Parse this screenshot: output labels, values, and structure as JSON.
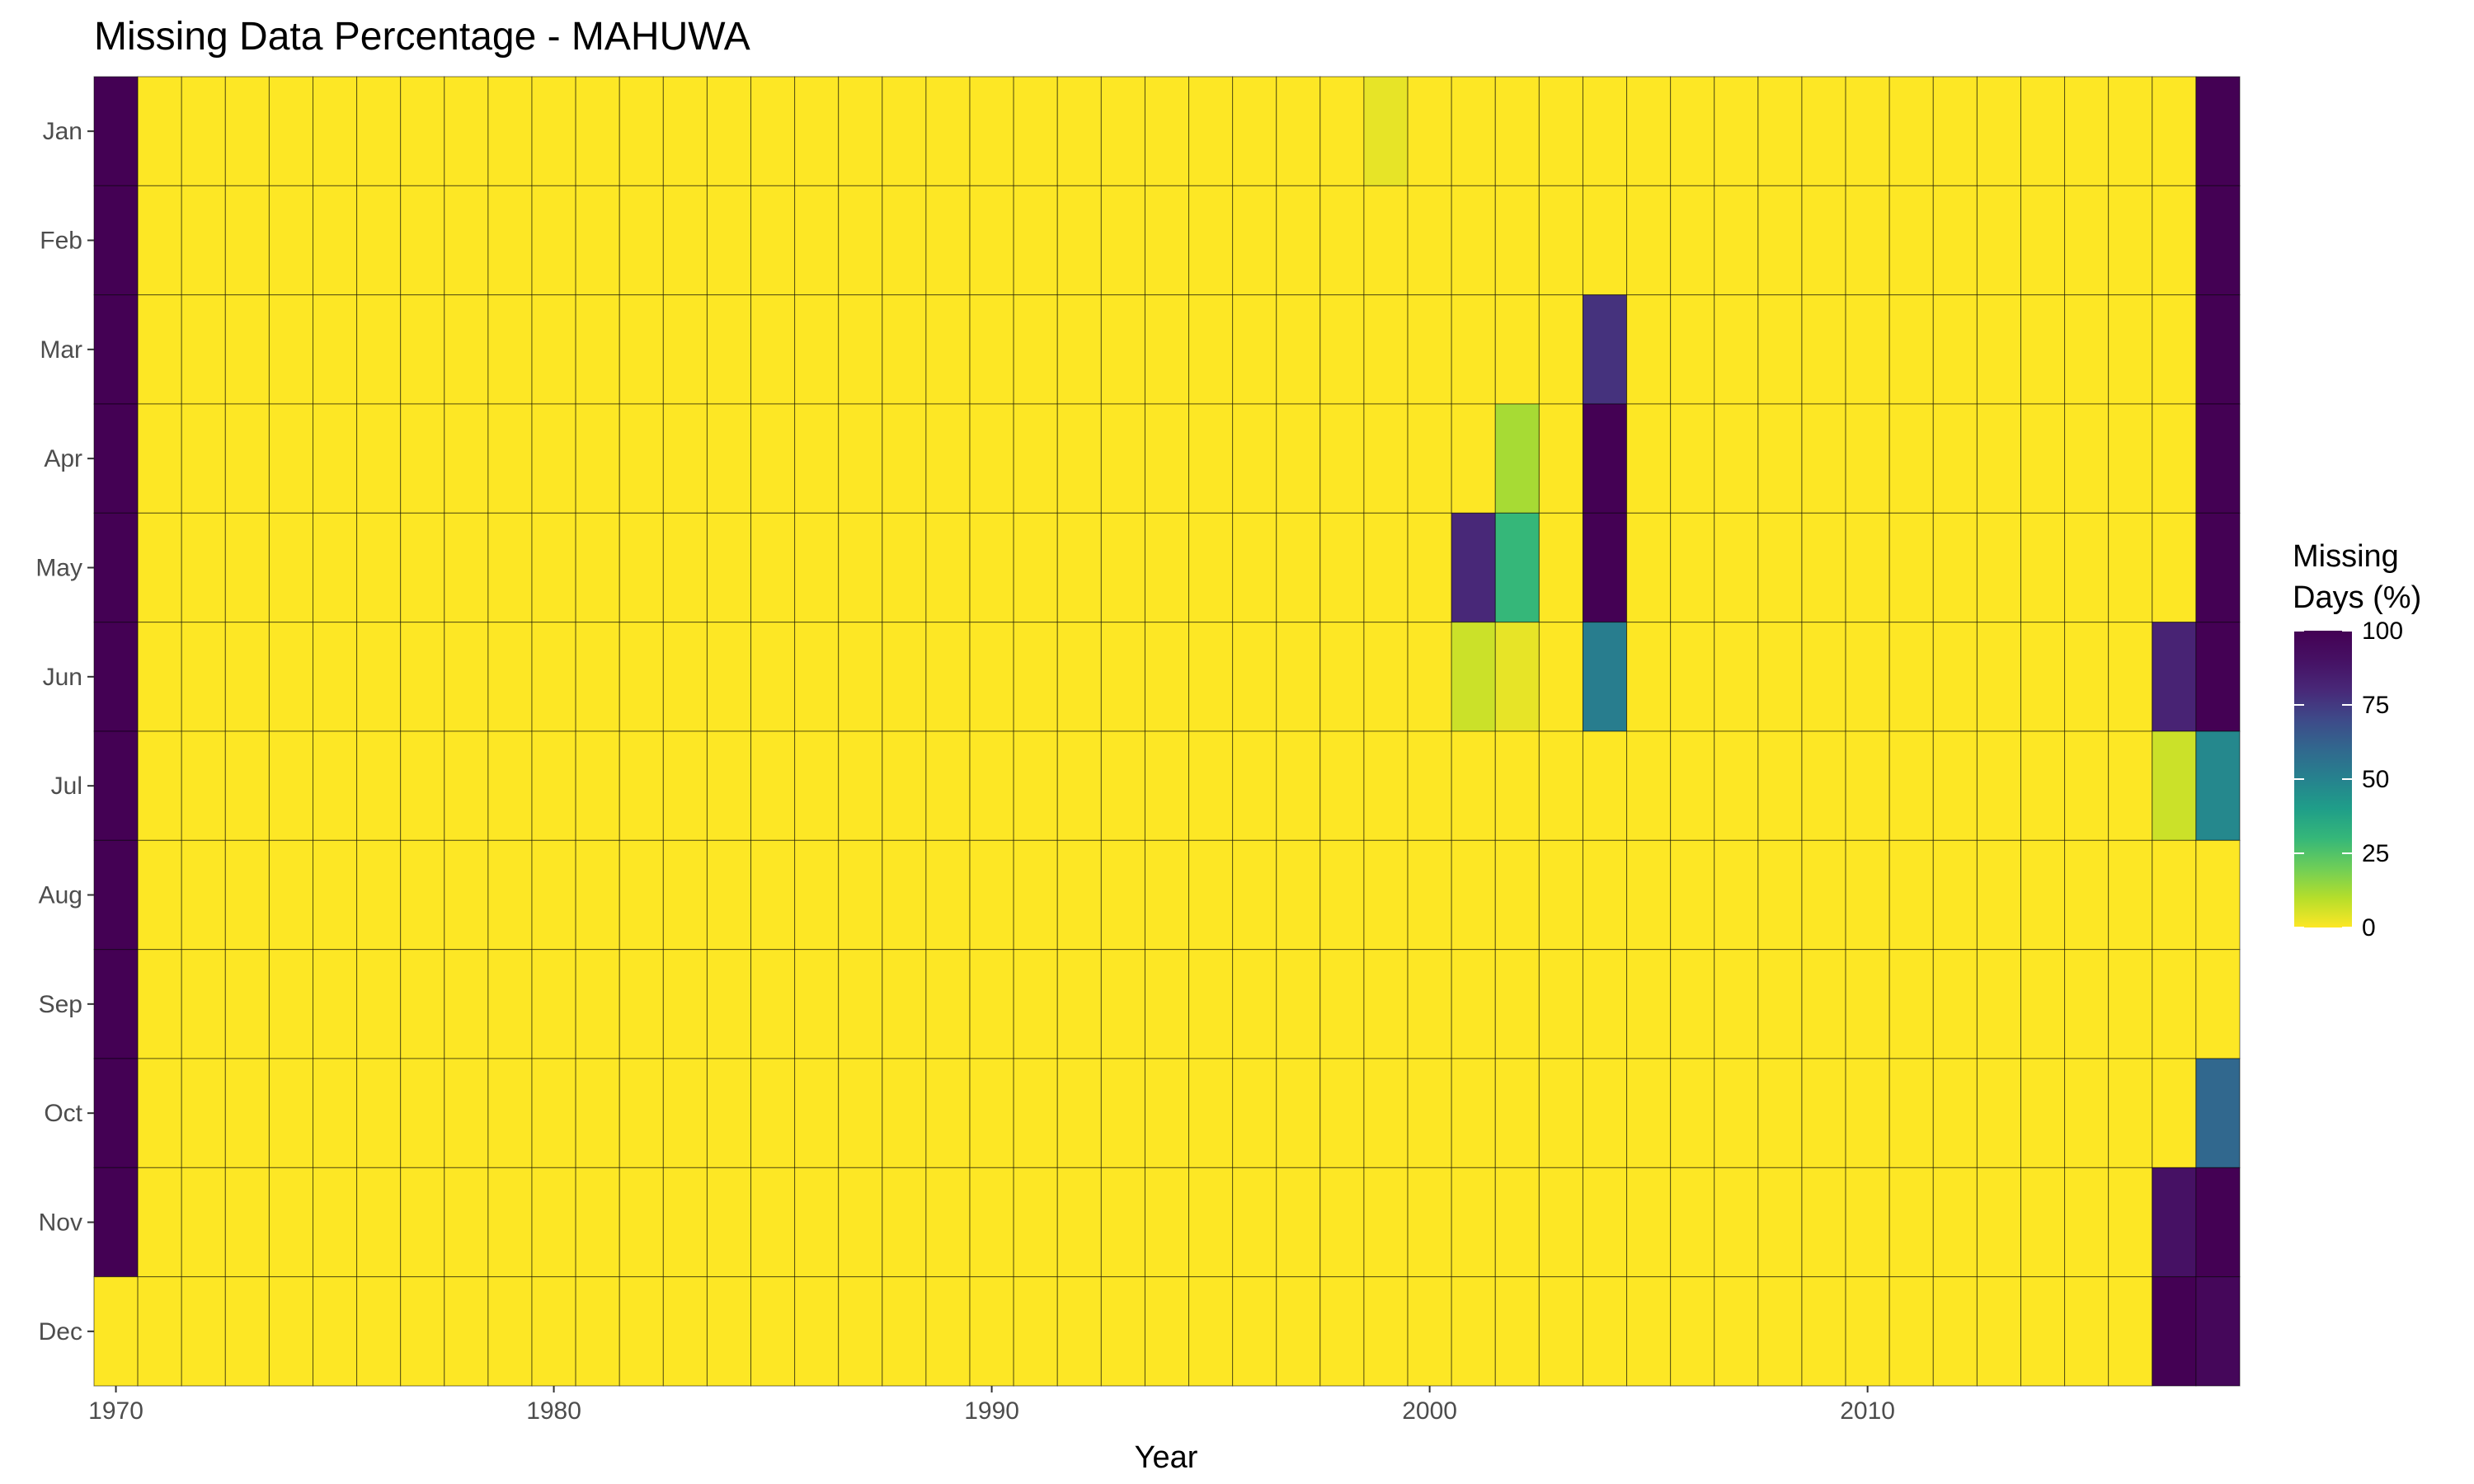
{
  "chart_data": {
    "type": "heatmap",
    "title": "Missing Data Percentage - MAHUWA",
    "xlabel": "Year",
    "ylabel": "",
    "x_start_year": 1970,
    "x_end_year": 2018,
    "x_ticks": [
      "1970",
      "1980",
      "1990",
      "2000",
      "2010"
    ],
    "months": [
      "Jan",
      "Feb",
      "Mar",
      "Apr",
      "May",
      "Jun",
      "Jul",
      "Aug",
      "Sep",
      "Oct",
      "Nov",
      "Dec"
    ],
    "colorbar": {
      "title_lines": [
        "Missing",
        "Days (%)"
      ],
      "ticks": [
        "100",
        "75",
        "50",
        "25",
        "0"
      ],
      "range": [
        0,
        100
      ]
    },
    "legend_position": "right",
    "default_value": 0,
    "cells": [
      {
        "year": 1970,
        "month": "Jan",
        "value": 100
      },
      {
        "year": 1970,
        "month": "Feb",
        "value": 100
      },
      {
        "year": 1970,
        "month": "Mar",
        "value": 100
      },
      {
        "year": 1970,
        "month": "Apr",
        "value": 100
      },
      {
        "year": 1970,
        "month": "May",
        "value": 100
      },
      {
        "year": 1970,
        "month": "Jun",
        "value": 100
      },
      {
        "year": 1970,
        "month": "Jul",
        "value": 100
      },
      {
        "year": 1970,
        "month": "Aug",
        "value": 100
      },
      {
        "year": 1970,
        "month": "Sep",
        "value": 100
      },
      {
        "year": 1970,
        "month": "Oct",
        "value": 100
      },
      {
        "year": 1970,
        "month": "Nov",
        "value": 100
      },
      {
        "year": 1970,
        "month": "Dec",
        "value": 0
      },
      {
        "year": 1999,
        "month": "Jan",
        "value": 3
      },
      {
        "year": 2001,
        "month": "May",
        "value": 80
      },
      {
        "year": 2001,
        "month": "Jun",
        "value": 7
      },
      {
        "year": 2002,
        "month": "Apr",
        "value": 12
      },
      {
        "year": 2002,
        "month": "May",
        "value": 30
      },
      {
        "year": 2002,
        "month": "Jun",
        "value": 3
      },
      {
        "year": 2004,
        "month": "Mar",
        "value": 77
      },
      {
        "year": 2004,
        "month": "Apr",
        "value": 100
      },
      {
        "year": 2004,
        "month": "May",
        "value": 100
      },
      {
        "year": 2004,
        "month": "Jun",
        "value": 52
      },
      {
        "year": 2017,
        "month": "Jun",
        "value": 82
      },
      {
        "year": 2017,
        "month": "Jul",
        "value": 7
      },
      {
        "year": 2017,
        "month": "Nov",
        "value": 90
      },
      {
        "year": 2017,
        "month": "Dec",
        "value": 100
      },
      {
        "year": 2018,
        "month": "Jan",
        "value": 100
      },
      {
        "year": 2018,
        "month": "Feb",
        "value": 100
      },
      {
        "year": 2018,
        "month": "Mar",
        "value": 100
      },
      {
        "year": 2018,
        "month": "Apr",
        "value": 100
      },
      {
        "year": 2018,
        "month": "May",
        "value": 100
      },
      {
        "year": 2018,
        "month": "Jun",
        "value": 100
      },
      {
        "year": 2018,
        "month": "Jul",
        "value": 48
      },
      {
        "year": 2018,
        "month": "Aug",
        "value": 0
      },
      {
        "year": 2018,
        "month": "Sep",
        "value": 0
      },
      {
        "year": 2018,
        "month": "Oct",
        "value": 60
      },
      {
        "year": 2018,
        "month": "Nov",
        "value": 100
      },
      {
        "year": 2018,
        "month": "Dec",
        "value": 96
      }
    ]
  }
}
